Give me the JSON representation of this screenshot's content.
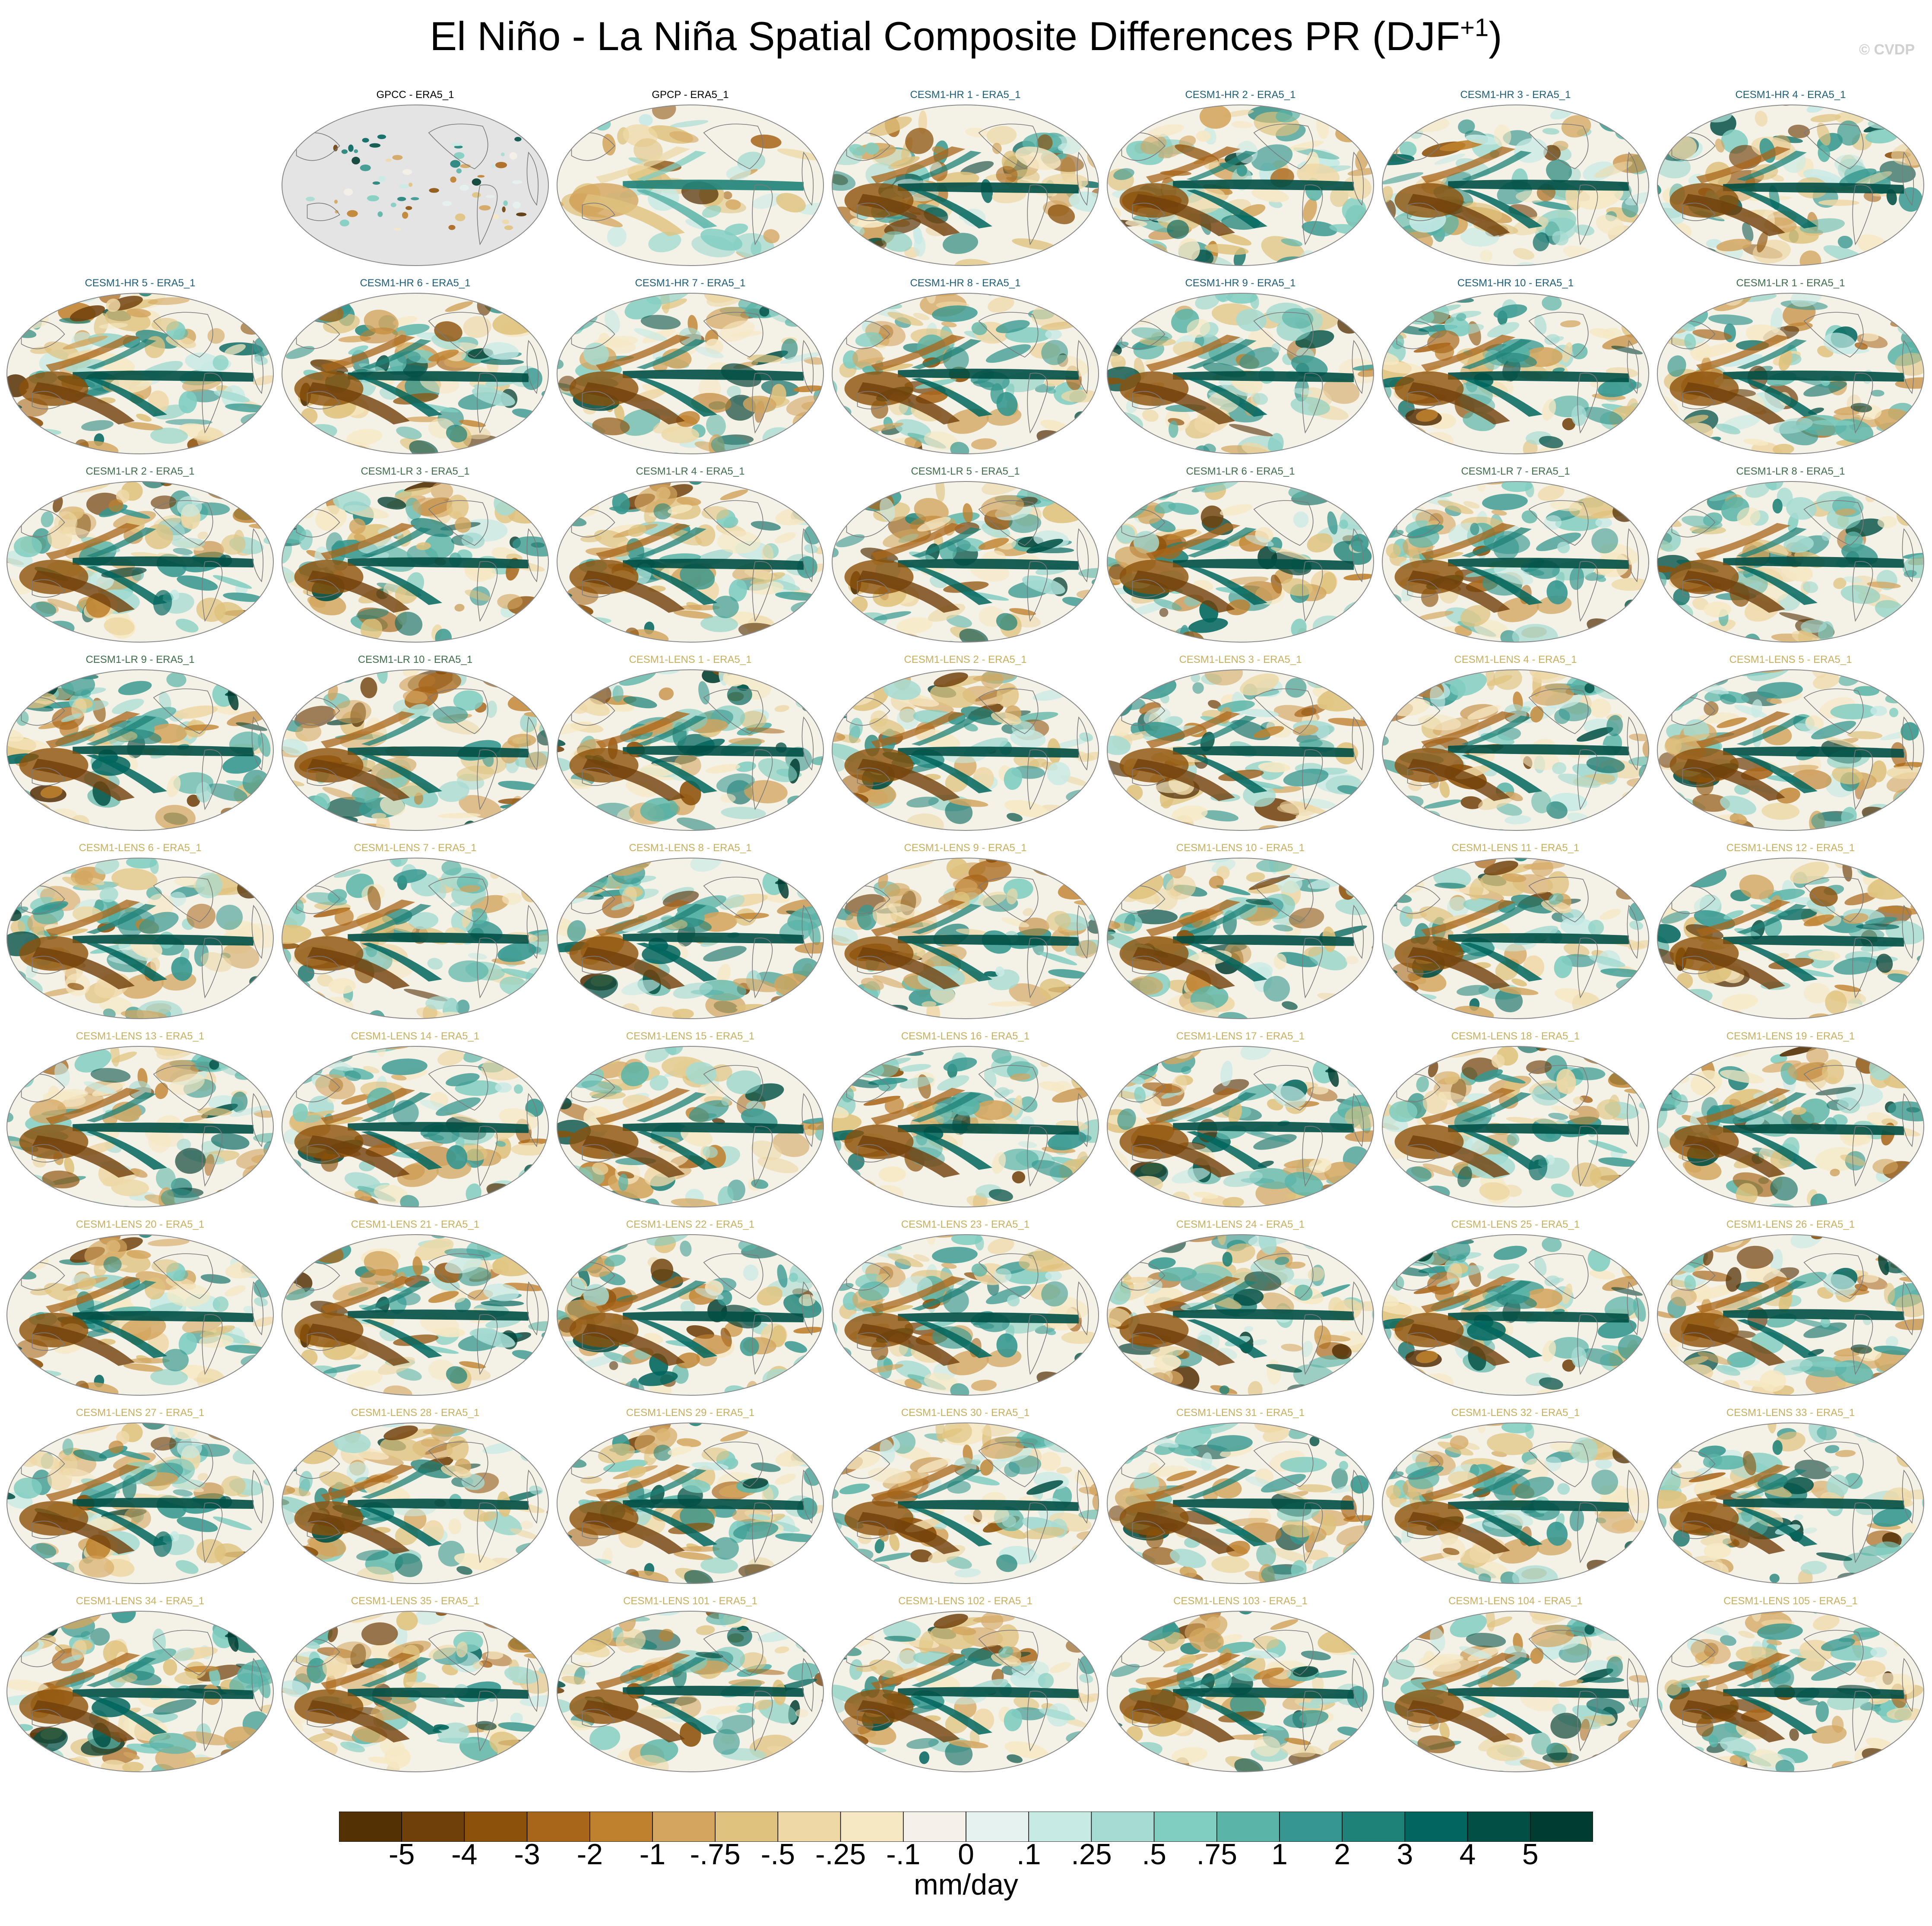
{
  "figure": {
    "title_main": "El Niño - La Niña Spatial Composite Differences PR (DJF",
    "title_sup": "+1",
    "title_end": ")",
    "credit": "© CVDP",
    "units": "mm/day"
  },
  "colors": {
    "obs_title": "#000000",
    "hr_title": "#1f5f7a",
    "lr_title": "#3f6f4a",
    "lens_title": "#c8b060",
    "land_fill": "#e4e4e4",
    "coast": "#7a7a7a"
  },
  "panels": [
    {
      "label": "GPCC - ERA5_1",
      "group": "obs_land"
    },
    {
      "label": "GPCP - ERA5_1",
      "group": "obs"
    },
    {
      "label": "CESM1-HR 1 - ERA5_1",
      "group": "hr"
    },
    {
      "label": "CESM1-HR 2 - ERA5_1",
      "group": "hr"
    },
    {
      "label": "CESM1-HR 3 - ERA5_1",
      "group": "hr"
    },
    {
      "label": "CESM1-HR 4 - ERA5_1",
      "group": "hr"
    },
    {
      "label": "CESM1-HR 5 - ERA5_1",
      "group": "hr"
    },
    {
      "label": "CESM1-HR 6 - ERA5_1",
      "group": "hr"
    },
    {
      "label": "CESM1-HR 7 - ERA5_1",
      "group": "hr"
    },
    {
      "label": "CESM1-HR 8 - ERA5_1",
      "group": "hr"
    },
    {
      "label": "CESM1-HR 9 - ERA5_1",
      "group": "hr"
    },
    {
      "label": "CESM1-HR 10 - ERA5_1",
      "group": "hr"
    },
    {
      "label": "CESM1-LR 1 - ERA5_1",
      "group": "lr"
    },
    {
      "label": "CESM1-LR 2 - ERA5_1",
      "group": "lr"
    },
    {
      "label": "CESM1-LR 3 - ERA5_1",
      "group": "lr"
    },
    {
      "label": "CESM1-LR 4 - ERA5_1",
      "group": "lr"
    },
    {
      "label": "CESM1-LR 5 - ERA5_1",
      "group": "lr"
    },
    {
      "label": "CESM1-LR 6 - ERA5_1",
      "group": "lr"
    },
    {
      "label": "CESM1-LR 7 - ERA5_1",
      "group": "lr"
    },
    {
      "label": "CESM1-LR 8 - ERA5_1",
      "group": "lr"
    },
    {
      "label": "CESM1-LR 9 - ERA5_1",
      "group": "lr"
    },
    {
      "label": "CESM1-LR 10 - ERA5_1",
      "group": "lr"
    },
    {
      "label": "CESM1-LENS 1 - ERA5_1",
      "group": "lens"
    },
    {
      "label": "CESM1-LENS 2 - ERA5_1",
      "group": "lens"
    },
    {
      "label": "CESM1-LENS 3 - ERA5_1",
      "group": "lens"
    },
    {
      "label": "CESM1-LENS 4 - ERA5_1",
      "group": "lens"
    },
    {
      "label": "CESM1-LENS 5 - ERA5_1",
      "group": "lens"
    },
    {
      "label": "CESM1-LENS 6 - ERA5_1",
      "group": "lens"
    },
    {
      "label": "CESM1-LENS 7 - ERA5_1",
      "group": "lens"
    },
    {
      "label": "CESM1-LENS 8 - ERA5_1",
      "group": "lens"
    },
    {
      "label": "CESM1-LENS 9 - ERA5_1",
      "group": "lens"
    },
    {
      "label": "CESM1-LENS 10 - ERA5_1",
      "group": "lens"
    },
    {
      "label": "CESM1-LENS 11 - ERA5_1",
      "group": "lens"
    },
    {
      "label": "CESM1-LENS 12 - ERA5_1",
      "group": "lens"
    },
    {
      "label": "CESM1-LENS 13 - ERA5_1",
      "group": "lens"
    },
    {
      "label": "CESM1-LENS 14 - ERA5_1",
      "group": "lens"
    },
    {
      "label": "CESM1-LENS 15 - ERA5_1",
      "group": "lens"
    },
    {
      "label": "CESM1-LENS 16 - ERA5_1",
      "group": "lens"
    },
    {
      "label": "CESM1-LENS 17 - ERA5_1",
      "group": "lens"
    },
    {
      "label": "CESM1-LENS 18 - ERA5_1",
      "group": "lens"
    },
    {
      "label": "CESM1-LENS 19 - ERA5_1",
      "group": "lens"
    },
    {
      "label": "CESM1-LENS 20 - ERA5_1",
      "group": "lens"
    },
    {
      "label": "CESM1-LENS 21 - ERA5_1",
      "group": "lens"
    },
    {
      "label": "CESM1-LENS 22 - ERA5_1",
      "group": "lens"
    },
    {
      "label": "CESM1-LENS 23 - ERA5_1",
      "group": "lens"
    },
    {
      "label": "CESM1-LENS 24 - ERA5_1",
      "group": "lens"
    },
    {
      "label": "CESM1-LENS 25 - ERA5_1",
      "group": "lens"
    },
    {
      "label": "CESM1-LENS 26 - ERA5_1",
      "group": "lens"
    },
    {
      "label": "CESM1-LENS 27 - ERA5_1",
      "group": "lens"
    },
    {
      "label": "CESM1-LENS 28 - ERA5_1",
      "group": "lens"
    },
    {
      "label": "CESM1-LENS 29 - ERA5_1",
      "group": "lens"
    },
    {
      "label": "CESM1-LENS 30 - ERA5_1",
      "group": "lens"
    },
    {
      "label": "CESM1-LENS 31 - ERA5_1",
      "group": "lens"
    },
    {
      "label": "CESM1-LENS 32 - ERA5_1",
      "group": "lens"
    },
    {
      "label": "CESM1-LENS 33 - ERA5_1",
      "group": "lens"
    },
    {
      "label": "CESM1-LENS 34 - ERA5_1",
      "group": "lens"
    },
    {
      "label": "CESM1-LENS 35 - ERA5_1",
      "group": "lens"
    },
    {
      "label": "CESM1-LENS 101 - ERA5_1",
      "group": "lens"
    },
    {
      "label": "CESM1-LENS 102 - ERA5_1",
      "group": "lens"
    },
    {
      "label": "CESM1-LENS 103 - ERA5_1",
      "group": "lens"
    },
    {
      "label": "CESM1-LENS 104 - ERA5_1",
      "group": "lens"
    },
    {
      "label": "CESM1-LENS 105 - ERA5_1",
      "group": "lens"
    }
  ],
  "colorbar": {
    "labels": [
      "-5",
      "-4",
      "-3",
      "-2",
      "-1",
      "-.75",
      "-.5",
      "-.25",
      "-.1",
      "0",
      ".1",
      ".25",
      ".5",
      ".75",
      "1",
      "2",
      "3",
      "4",
      "5"
    ],
    "colors": [
      "#543005",
      "#70400b",
      "#8c510a",
      "#a8661a",
      "#bf812d",
      "#d3a55e",
      "#dfc27d",
      "#eed8a6",
      "#f6e8c3",
      "#f5f1e8",
      "#e6f2ef",
      "#c7eae5",
      "#a6dbd2",
      "#80cdc1",
      "#5ab4a8",
      "#35978f",
      "#1f8278",
      "#01665e",
      "#014f45",
      "#003c30"
    ]
  }
}
